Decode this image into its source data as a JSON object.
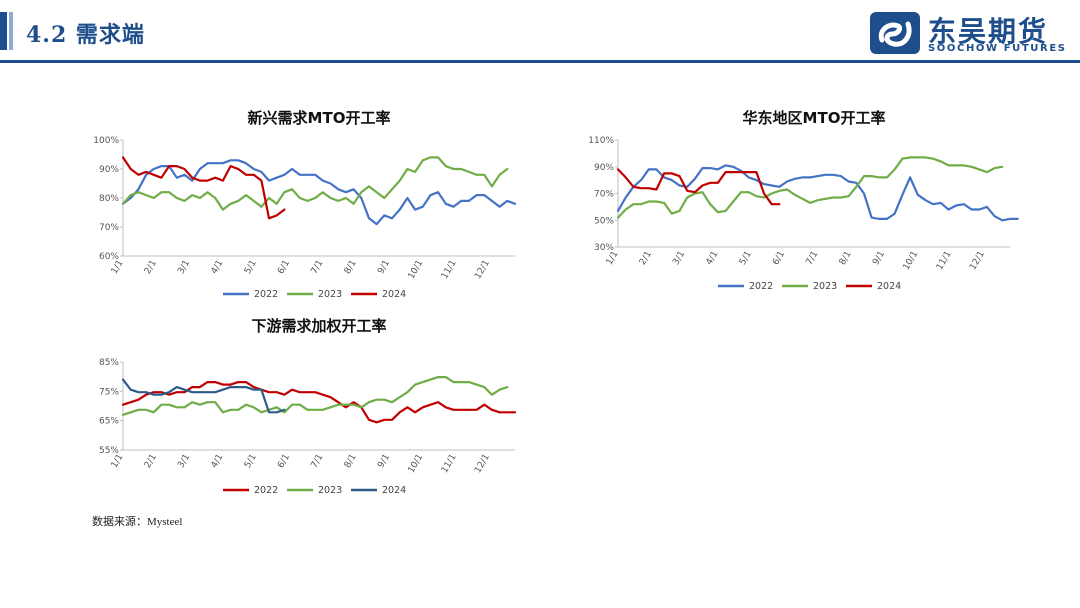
{
  "header": {
    "title": "4.2 需求端",
    "logo_cn": "东吴期货",
    "logo_en": "SOOCHOW FUTURES"
  },
  "source": "数据来源：Mysteel",
  "chart_data": [
    {
      "type": "line",
      "title": "新兴需求MTO开工率",
      "x_ticks": [
        "1/1",
        "2/1",
        "3/1",
        "4/1",
        "5/1",
        "6/1",
        "7/1",
        "8/1",
        "9/1",
        "10/1",
        "11/1",
        "12/1"
      ],
      "y_ticks": [
        "100%",
        "90%",
        "80%",
        "70%",
        "60%"
      ],
      "ylim": [
        60,
        100
      ],
      "series": [
        {
          "name": "2022",
          "color": "#4472c4",
          "values": [
            78,
            80,
            83,
            88,
            90,
            91,
            91,
            87,
            88,
            86,
            90,
            92,
            92,
            92,
            93,
            93,
            92,
            90,
            89,
            86,
            87,
            88,
            90,
            88,
            88,
            88,
            86,
            85,
            83,
            82,
            83,
            80,
            73,
            71,
            74,
            73,
            76,
            80,
            76,
            77,
            81,
            82,
            78,
            77,
            79,
            79,
            81,
            81,
            79,
            77,
            79,
            78
          ]
        },
        {
          "name": "2023",
          "color": "#70ad47",
          "values": [
            78,
            81,
            82,
            81,
            80,
            82,
            82,
            80,
            79,
            81,
            80,
            82,
            80,
            76,
            78,
            79,
            81,
            79,
            77,
            80,
            78,
            82,
            83,
            80,
            79,
            80,
            82,
            80,
            79,
            80,
            78,
            82,
            84,
            82,
            80,
            83,
            86,
            90,
            89,
            93,
            94,
            94,
            91,
            90,
            90,
            89,
            88,
            88,
            84,
            88,
            90
          ]
        },
        {
          "name": "2024",
          "color": "#c00000",
          "values": [
            94,
            90,
            88,
            89,
            88,
            87,
            91,
            91,
            90,
            87,
            86,
            86,
            87,
            86,
            91,
            90,
            88,
            88,
            86,
            73,
            74,
            76
          ]
        }
      ]
    },
    {
      "type": "line",
      "title": "华东地区MTO开工率",
      "x_ticks": [
        "1/1",
        "2/1",
        "3/1",
        "4/1",
        "5/1",
        "6/1",
        "7/1",
        "8/1",
        "9/1",
        "10/1",
        "11/1",
        "12/1"
      ],
      "y_ticks": [
        "110%",
        "90%",
        "70%",
        "50%",
        "30%"
      ],
      "ylim": [
        30,
        110
      ],
      "series": [
        {
          "name": "2022",
          "color": "#4472c4",
          "values": [
            57,
            67,
            75,
            80,
            88,
            88,
            82,
            80,
            76,
            75,
            81,
            89,
            89,
            88,
            91,
            90,
            87,
            82,
            80,
            77,
            76,
            75,
            79,
            81,
            82,
            82,
            83,
            84,
            84,
            83,
            79,
            78,
            70,
            52,
            51,
            51,
            55,
            69,
            82,
            69,
            65,
            62,
            63,
            58,
            61,
            62,
            58,
            58,
            60,
            53,
            50,
            51,
            51
          ]
        },
        {
          "name": "2023",
          "color": "#70ad47",
          "values": [
            52,
            58,
            62,
            62,
            64,
            64,
            63,
            55,
            57,
            67,
            70,
            71,
            62,
            56,
            57,
            64,
            71,
            71,
            68,
            67,
            70,
            72,
            73,
            69,
            66,
            63,
            65,
            66,
            67,
            67,
            68,
            75,
            83,
            83,
            82,
            82,
            88,
            96,
            97,
            97,
            97,
            96,
            94,
            91,
            91,
            91,
            90,
            88,
            86,
            89,
            90
          ]
        },
        {
          "name": "2024",
          "color": "#c00000",
          "values": [
            88,
            82,
            75,
            74,
            74,
            73,
            85,
            85,
            83,
            72,
            71,
            76,
            78,
            78,
            86,
            86,
            86,
            86,
            86,
            70,
            62,
            62
          ]
        }
      ]
    },
    {
      "type": "line",
      "title": "下游需求加权开工率",
      "x_ticks": [
        "1/1",
        "2/1",
        "3/1",
        "4/1",
        "5/1",
        "6/1",
        "7/1",
        "8/1",
        "9/1",
        "10/1",
        "11/1",
        "12/1"
      ],
      "y_ticks": [
        "85%",
        "75%",
        "65%",
        "55%"
      ],
      "ylim": [
        55,
        90
      ],
      "series": [
        {
          "name": "2022",
          "color": "#c00000",
          "values": [
            73,
            74,
            75,
            77,
            78,
            78,
            77,
            78,
            78,
            80,
            80,
            82,
            82,
            81,
            81,
            82,
            82,
            80,
            79,
            78,
            78,
            77,
            79,
            78,
            78,
            78,
            77,
            76,
            74,
            72,
            74,
            72,
            67,
            66,
            67,
            67,
            70,
            72,
            70,
            72,
            73,
            74,
            72,
            71,
            71,
            71,
            71,
            73,
            71,
            70,
            70,
            70
          ]
        },
        {
          "name": "2023",
          "color": "#70ad47",
          "values": [
            69,
            70,
            71,
            71,
            70,
            73,
            73,
            72,
            72,
            74,
            73,
            74,
            74,
            70,
            71,
            71,
            73,
            72,
            70,
            71,
            72,
            70,
            73,
            73,
            71,
            71,
            71,
            72,
            73,
            73,
            73,
            72,
            74,
            75,
            75,
            74,
            76,
            78,
            81,
            82,
            83,
            84,
            84,
            82,
            82,
            82,
            81,
            80,
            77,
            79,
            80
          ]
        },
        {
          "name": "2024",
          "color": "#2e5c8a",
          "values": [
            83,
            79,
            78,
            78,
            77,
            77,
            78,
            80,
            79,
            78,
            78,
            78,
            78,
            79,
            80,
            80,
            80,
            79,
            79,
            70,
            70,
            71
          ]
        }
      ]
    }
  ]
}
